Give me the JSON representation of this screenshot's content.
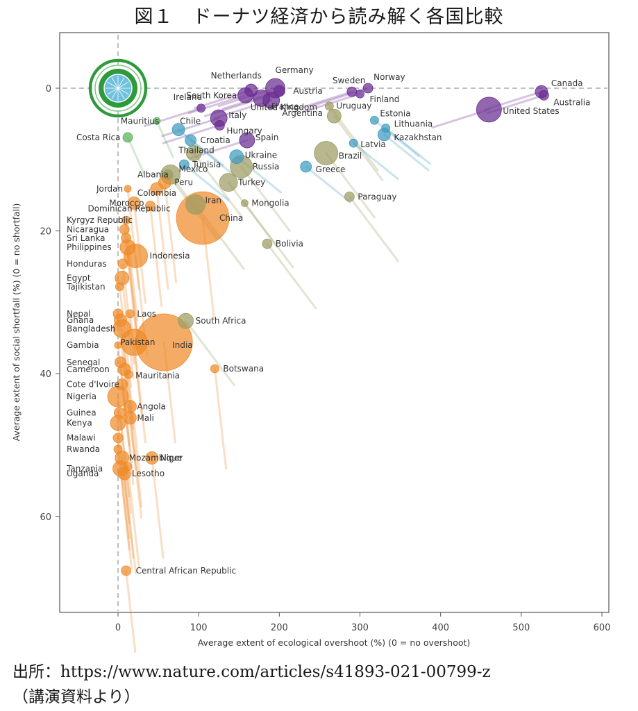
{
  "title": "図１　ドーナツ経済から読み解く各国比較",
  "source": "出所：https://www.nature.com/articles/s41893-021-00799-z",
  "note": "（講演資料より）",
  "colors": {
    "high_income": "#6a2c91",
    "upper_middle_blue": "#3f9bbf",
    "upper_middle_olive": "#9c9b62",
    "low_income": "#ee8a2a",
    "green": "#5ab25a"
  },
  "chart_data": {
    "type": "scatter",
    "title": "",
    "xlabel": "Average extent of ecological overshoot (%) (0 = no overshoot)",
    "ylabel": "Average extent of social shortfall (%) (0 = no shortfall)",
    "xlim": [
      -70,
      610
    ],
    "ylim": [
      -10,
      73
    ],
    "y_inverted": true,
    "xticks": [
      "0",
      "100",
      "200",
      "300",
      "400",
      "500",
      "600"
    ],
    "yticks": [
      "0",
      "20",
      "40",
      "60"
    ],
    "reference_lines": [
      "x = 0",
      "y = 0"
    ],
    "points": [
      {
        "label": "Canada",
        "x": 525,
        "y": 0.5,
        "group": "purple",
        "size": 9
      },
      {
        "label": "Australia",
        "x": 528,
        "y": 1,
        "group": "purple",
        "size": 7
      },
      {
        "label": "United States",
        "x": 460,
        "y": 3,
        "group": "purple",
        "size": 18
      },
      {
        "label": "Norway",
        "x": 310,
        "y": 0,
        "group": "purple",
        "size": 7
      },
      {
        "label": "Sweden",
        "x": 290,
        "y": 0.5,
        "group": "purple",
        "size": 7
      },
      {
        "label": "Finland",
        "x": 300,
        "y": 0.8,
        "group": "purple",
        "size": 6
      },
      {
        "label": "Netherlands",
        "x": 165,
        "y": 0.3,
        "group": "purple",
        "size": 9
      },
      {
        "label": "Germany",
        "x": 195,
        "y": 0,
        "group": "purple",
        "size": 14
      },
      {
        "label": "Austria",
        "x": 200,
        "y": 0.4,
        "group": "purple",
        "size": 8
      },
      {
        "label": "South Korea",
        "x": 158,
        "y": 1,
        "group": "purple",
        "size": 11
      },
      {
        "label": "France",
        "x": 178,
        "y": 1.4,
        "group": "purple",
        "size": 12
      },
      {
        "label": "United Kingdom",
        "x": 190,
        "y": 1.7,
        "group": "purple",
        "size": 12
      },
      {
        "label": "Ireland",
        "x": 103,
        "y": 2.8,
        "group": "purple",
        "size": 6
      },
      {
        "label": "Italy",
        "x": 125,
        "y": 4.2,
        "group": "purple",
        "size": 12
      },
      {
        "label": "Hungary",
        "x": 126,
        "y": 5.2,
        "group": "purple",
        "size": 7
      },
      {
        "label": "Spain",
        "x": 160,
        "y": 7.3,
        "group": "purple",
        "size": 11
      },
      {
        "label": "Uruguay",
        "x": 262,
        "y": 2.5,
        "group": "olive",
        "size": 6
      },
      {
        "label": "Argentina",
        "x": 268,
        "y": 3.9,
        "group": "olive",
        "size": 10
      },
      {
        "label": "Estonia",
        "x": 318,
        "y": 4.5,
        "group": "blue",
        "size": 6
      },
      {
        "label": "Lithuania",
        "x": 332,
        "y": 5.6,
        "group": "blue",
        "size": 6
      },
      {
        "label": "Kazakhstan",
        "x": 330,
        "y": 6.5,
        "group": "blue",
        "size": 9
      },
      {
        "label": "Latvia",
        "x": 292,
        "y": 7.7,
        "group": "blue",
        "size": 6
      },
      {
        "label": "Brazil",
        "x": 258,
        "y": 9.1,
        "group": "olive",
        "size": 17
      },
      {
        "label": "Greece",
        "x": 233,
        "y": 11,
        "group": "blue",
        "size": 8
      },
      {
        "label": "Mauritius",
        "x": 48,
        "y": 4.6,
        "group": "green",
        "size": 5
      },
      {
        "label": "Chile",
        "x": 75,
        "y": 5.8,
        "group": "blue",
        "size": 9
      },
      {
        "label": "Croatia",
        "x": 90,
        "y": 7.3,
        "group": "blue",
        "size": 8
      },
      {
        "label": "Costa Rica",
        "x": 12,
        "y": 6.9,
        "group": "green",
        "size": 7
      },
      {
        "label": "Thailand",
        "x": 94,
        "y": 9.1,
        "group": "olive",
        "size": 11
      },
      {
        "label": "Ukraine",
        "x": 147,
        "y": 9.6,
        "group": "blue",
        "size": 10
      },
      {
        "label": "Tunisia",
        "x": 82,
        "y": 10.7,
        "group": "blue",
        "size": 7
      },
      {
        "label": "Russia",
        "x": 153,
        "y": 11,
        "group": "olive",
        "size": 16
      },
      {
        "label": "Albania",
        "x": 62,
        "y": 12.1,
        "group": "olive",
        "size": 7
      },
      {
        "label": "Mexico",
        "x": 65,
        "y": 12.1,
        "group": "olive",
        "size": 14
      },
      {
        "label": "Peru",
        "x": 58,
        "y": 13.2,
        "group": "low",
        "size": 9
      },
      {
        "label": "Turkey",
        "x": 137,
        "y": 13.2,
        "group": "olive",
        "size": 13
      },
      {
        "label": "Jordan",
        "x": 12,
        "y": 14.1,
        "group": "low",
        "size": 5
      },
      {
        "label": "Colombia",
        "x": 48,
        "y": 14.1,
        "group": "low",
        "size": 9
      },
      {
        "label": "Morocco",
        "x": 20,
        "y": 16.1,
        "group": "low",
        "size": 9
      },
      {
        "label": "Dominican Republic",
        "x": 40,
        "y": 16.5,
        "group": "low",
        "size": 7
      },
      {
        "label": "Iran",
        "x": 96,
        "y": 16.3,
        "group": "olive",
        "size": 14
      },
      {
        "label": "Mongolia",
        "x": 157,
        "y": 16.1,
        "group": "olive",
        "size": 5
      },
      {
        "label": "Paraguay",
        "x": 287,
        "y": 15.2,
        "group": "olive",
        "size": 7
      },
      {
        "label": "China",
        "x": 105,
        "y": 18.2,
        "group": "low",
        "size": 38
      },
      {
        "label": "Kyrgyz Republic",
        "x": 10,
        "y": 18.5,
        "group": "low",
        "size": 6
      },
      {
        "label": "Nicaragua",
        "x": 8,
        "y": 19.8,
        "group": "low",
        "size": 7
      },
      {
        "label": "Sri Lanka",
        "x": 10,
        "y": 21,
        "group": "low",
        "size": 7
      },
      {
        "label": "Philippines",
        "x": 12,
        "y": 22.3,
        "group": "low",
        "size": 11
      },
      {
        "label": "Indonesia",
        "x": 22,
        "y": 23.5,
        "group": "low",
        "size": 17
      },
      {
        "label": "Bolivia",
        "x": 185,
        "y": 21.8,
        "group": "olive",
        "size": 7
      },
      {
        "label": "Honduras",
        "x": 6,
        "y": 24.6,
        "group": "low",
        "size": 7
      },
      {
        "label": "Egypt",
        "x": 5,
        "y": 26.6,
        "group": "low",
        "size": 10
      },
      {
        "label": "Tajikistan",
        "x": 2,
        "y": 27.8,
        "group": "low",
        "size": 6
      },
      {
        "label": "Nepal",
        "x": 0,
        "y": 31.6,
        "group": "low",
        "size": 7
      },
      {
        "label": "Laos",
        "x": 15,
        "y": 31.6,
        "group": "low",
        "size": 6
      },
      {
        "label": "Ghana",
        "x": 3,
        "y": 32.5,
        "group": "low",
        "size": 9
      },
      {
        "label": "Bangladesh",
        "x": 5,
        "y": 33.7,
        "group": "low",
        "size": 13
      },
      {
        "label": "South Africa",
        "x": 84,
        "y": 32.6,
        "group": "olive",
        "size": 11
      },
      {
        "label": "Pakistan",
        "x": 20,
        "y": 35.6,
        "group": "low",
        "size": 19
      },
      {
        "label": "India",
        "x": 57,
        "y": 35.6,
        "group": "low",
        "size": 41
      },
      {
        "label": "Gambia",
        "x": 0,
        "y": 36,
        "group": "low",
        "size": 5
      },
      {
        "label": "Botswana",
        "x": 120,
        "y": 39.3,
        "group": "low",
        "size": 6
      },
      {
        "label": "Senegal",
        "x": 3,
        "y": 38.4,
        "group": "low",
        "size": 8
      },
      {
        "label": "Cameroon",
        "x": 8,
        "y": 39.4,
        "group": "low",
        "size": 9
      },
      {
        "label": "Mauritania",
        "x": 13,
        "y": 40.1,
        "group": "low",
        "size": 6
      },
      {
        "label": "Cote d'Ivoire",
        "x": 5,
        "y": 41.5,
        "group": "low",
        "size": 8
      },
      {
        "label": "Nigeria",
        "x": 0,
        "y": 43.2,
        "group": "low",
        "size": 15
      },
      {
        "label": "Angola",
        "x": 15,
        "y": 44.6,
        "group": "low",
        "size": 9
      },
      {
        "label": "Guinea",
        "x": 2,
        "y": 45.5,
        "group": "low",
        "size": 8
      },
      {
        "label": "Mali",
        "x": 15,
        "y": 46.2,
        "group": "low",
        "size": 9
      },
      {
        "label": "Kenya",
        "x": 0,
        "y": 46.9,
        "group": "low",
        "size": 11
      },
      {
        "label": "Malawi",
        "x": 0,
        "y": 49,
        "group": "low",
        "size": 7
      },
      {
        "label": "Rwanda",
        "x": 0,
        "y": 50.6,
        "group": "low",
        "size": 6
      },
      {
        "label": "Mozambique",
        "x": 5,
        "y": 51.8,
        "group": "low",
        "size": 10
      },
      {
        "label": "Niger",
        "x": 42,
        "y": 51.8,
        "group": "low",
        "size": 9
      },
      {
        "label": "Tanzania",
        "x": 3,
        "y": 53.3,
        "group": "low",
        "size": 11
      },
      {
        "label": "Lesotho",
        "x": 12,
        "y": 53,
        "group": "low",
        "size": 6
      },
      {
        "label": "Uganda",
        "x": 8,
        "y": 54,
        "group": "low",
        "size": 9
      },
      {
        "label": "Central African Republic",
        "x": 10,
        "y": 67.6,
        "group": "low",
        "size": 7
      }
    ]
  }
}
